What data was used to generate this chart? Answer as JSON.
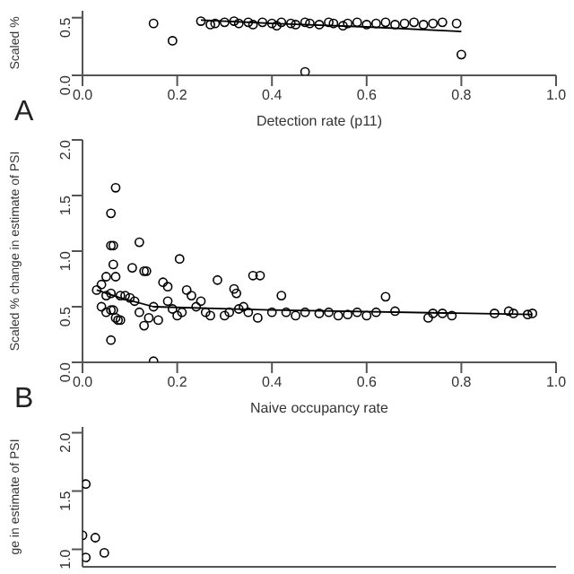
{
  "chart_data": [
    {
      "type": "scatter",
      "xlabel": "Detection rate (p11)",
      "ylabel": "Scaled %",
      "annotations": [
        "A"
      ],
      "xlim": [
        0,
        1
      ],
      "xticks": [
        {
          "value": 0,
          "label": "0.0"
        },
        {
          "value": 0.2,
          "label": "0.2"
        },
        {
          "value": 0.4,
          "label": "0.4"
        },
        {
          "value": 0.6,
          "label": "0.6"
        },
        {
          "value": 0.8,
          "label": "0.8"
        },
        {
          "value": 1,
          "label": "1.0"
        }
      ],
      "ylim": [
        0,
        0.56
      ],
      "yticks": [
        {
          "value": 0,
          "label": "0.0"
        },
        {
          "value": 0.5,
          "label": "0.5"
        }
      ],
      "marker": "circle",
      "grid": false,
      "legend": false,
      "series": [
        {
          "type": "scatter",
          "color": "#000000",
          "x": [
            0.15,
            0.19,
            0.25,
            0.27,
            0.28,
            0.3,
            0.32,
            0.33,
            0.35,
            0.36,
            0.38,
            0.4,
            0.41,
            0.42,
            0.44,
            0.45,
            0.47,
            0.48,
            0.5,
            0.52,
            0.53,
            0.55,
            0.56,
            0.58,
            0.6,
            0.62,
            0.64,
            0.66,
            0.68,
            0.7,
            0.72,
            0.74,
            0.76,
            0.79,
            0.8,
            0.47
          ],
          "values": [
            0.45,
            0.3,
            0.47,
            0.44,
            0.45,
            0.46,
            0.47,
            0.45,
            0.46,
            0.44,
            0.46,
            0.45,
            0.43,
            0.46,
            0.45,
            0.44,
            0.46,
            0.45,
            0.44,
            0.46,
            0.45,
            0.43,
            0.45,
            0.46,
            0.44,
            0.45,
            0.46,
            0.44,
            0.45,
            0.46,
            0.44,
            0.45,
            0.46,
            0.45,
            0.18,
            0.03
          ]
        },
        {
          "type": "line",
          "marker": "none",
          "color": "#000000",
          "x": [
            0.25,
            0.4,
            0.6,
            0.8
          ],
          "values": [
            0.48,
            0.45,
            0.42,
            0.38
          ]
        }
      ]
    },
    {
      "type": "scatter",
      "xlabel": "Naive occupancy rate",
      "ylabel": "Scaled % change in estimate of PSI",
      "annotations": [
        "B"
      ],
      "xlim": [
        0,
        1
      ],
      "xticks": [
        {
          "value": 0,
          "label": "0.0"
        },
        {
          "value": 0.2,
          "label": "0.2"
        },
        {
          "value": 0.4,
          "label": "0.4"
        },
        {
          "value": 0.6,
          "label": "0.6"
        },
        {
          "value": 0.8,
          "label": "0.8"
        },
        {
          "value": 1,
          "label": "1.0"
        }
      ],
      "ylim": [
        0,
        2
      ],
      "yticks": [
        {
          "value": 0,
          "label": "0.0"
        },
        {
          "value": 0.5,
          "label": "0.5"
        },
        {
          "value": 1,
          "label": "1.0"
        },
        {
          "value": 1.5,
          "label": "1.5"
        },
        {
          "value": 2,
          "label": "2.0"
        }
      ],
      "marker": "circle",
      "grid": false,
      "legend": false,
      "series": [
        {
          "type": "scatter",
          "color": "#000000",
          "x": [
            0.07,
            0.06,
            0.06,
            0.065,
            0.065,
            0.12,
            0.105,
            0.13,
            0.135,
            0.205,
            0.07,
            0.05,
            0.04,
            0.03,
            0.05,
            0.06,
            0.08,
            0.09,
            0.1,
            0.11,
            0.04,
            0.05,
            0.06,
            0.065,
            0.07,
            0.075,
            0.08,
            0.06,
            0.12,
            0.13,
            0.14,
            0.15,
            0.15,
            0.16,
            0.17,
            0.18,
            0.18,
            0.19,
            0.2,
            0.21,
            0.22,
            0.23,
            0.24,
            0.25,
            0.26,
            0.27,
            0.285,
            0.3,
            0.31,
            0.32,
            0.325,
            0.33,
            0.34,
            0.35,
            0.36,
            0.375,
            0.37,
            0.4,
            0.42,
            0.43,
            0.45,
            0.47,
            0.5,
            0.52,
            0.54,
            0.56,
            0.58,
            0.6,
            0.62,
            0.64,
            0.66,
            0.73,
            0.74,
            0.76,
            0.78,
            0.87,
            0.9,
            0.91,
            0.94,
            0.95
          ],
          "values": [
            1.57,
            1.34,
            1.05,
            1.05,
            0.88,
            1.08,
            0.85,
            0.82,
            0.82,
            0.93,
            0.77,
            0.77,
            0.7,
            0.65,
            0.6,
            0.62,
            0.6,
            0.6,
            0.58,
            0.55,
            0.5,
            0.45,
            0.47,
            0.47,
            0.4,
            0.38,
            0.38,
            0.2,
            0.45,
            0.33,
            0.4,
            0.5,
            0.01,
            0.38,
            0.72,
            0.68,
            0.55,
            0.48,
            0.42,
            0.45,
            0.65,
            0.6,
            0.5,
            0.55,
            0.45,
            0.42,
            0.74,
            0.42,
            0.45,
            0.66,
            0.62,
            0.48,
            0.5,
            0.45,
            0.78,
            0.78,
            0.4,
            0.45,
            0.6,
            0.45,
            0.42,
            0.45,
            0.44,
            0.45,
            0.42,
            0.43,
            0.45,
            0.42,
            0.45,
            0.59,
            0.46,
            0.4,
            0.44,
            0.44,
            0.42,
            0.44,
            0.46,
            0.44,
            0.43,
            0.44
          ]
        },
        {
          "type": "line",
          "marker": "none",
          "color": "#000000",
          "x": [
            0.03,
            0.08,
            0.15,
            0.4,
            0.95
          ],
          "values": [
            0.65,
            0.58,
            0.5,
            0.47,
            0.43
          ]
        }
      ]
    },
    {
      "type": "scatter",
      "ylabel": "ge in estimate of PSI",
      "xlim": [
        0,
        1
      ],
      "ylim": [
        0.85,
        2.05
      ],
      "yticks": [
        {
          "value": 1,
          "label": "1.0"
        },
        {
          "value": 1.5,
          "label": "1.5"
        },
        {
          "value": 2,
          "label": "2.0"
        }
      ],
      "tick_labels": "y",
      "marker": "circle",
      "grid": false,
      "legend": false,
      "series": [
        {
          "type": "scatter",
          "color": "#000000",
          "x": [
            0.007,
            0.0,
            0.027,
            0.007,
            0.046
          ],
          "values": [
            1.56,
            1.12,
            1.1,
            0.93,
            0.97
          ]
        }
      ]
    }
  ]
}
